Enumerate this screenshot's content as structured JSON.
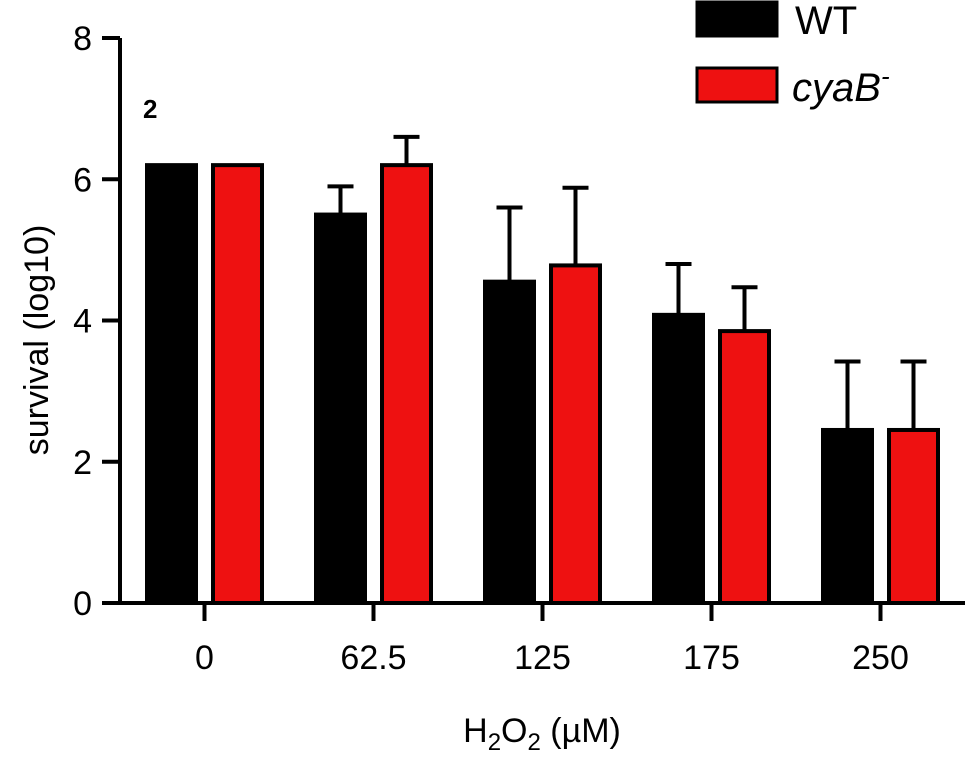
{
  "panel_label": "2",
  "chart_data": {
    "type": "bar",
    "categories": [
      "0",
      "62.5",
      "125",
      "175",
      "250"
    ],
    "series": [
      {
        "name": "WT",
        "values": [
          6.2,
          5.5,
          4.55,
          4.08,
          2.45
        ],
        "errors": [
          0.0,
          0.4,
          1.05,
          0.72,
          0.97
        ],
        "color": "#000000"
      },
      {
        "name_main": "cyaB",
        "name_sup": "-",
        "values": [
          6.2,
          6.2,
          4.78,
          3.85,
          2.45
        ],
        "errors": [
          0.0,
          0.4,
          1.1,
          0.62,
          0.97
        ],
        "color": "#ee1111"
      }
    ],
    "xlabel": {
      "main": "H",
      "sub1": "2",
      "mid": "O",
      "sub2": "2",
      "tail": " (µM)"
    },
    "ylabel": "survival  (log10)",
    "ylim": [
      0,
      8
    ],
    "yticks": [
      "0",
      "2",
      "4",
      "6",
      "8"
    ],
    "legend_position": "top-right",
    "grid": false
  }
}
